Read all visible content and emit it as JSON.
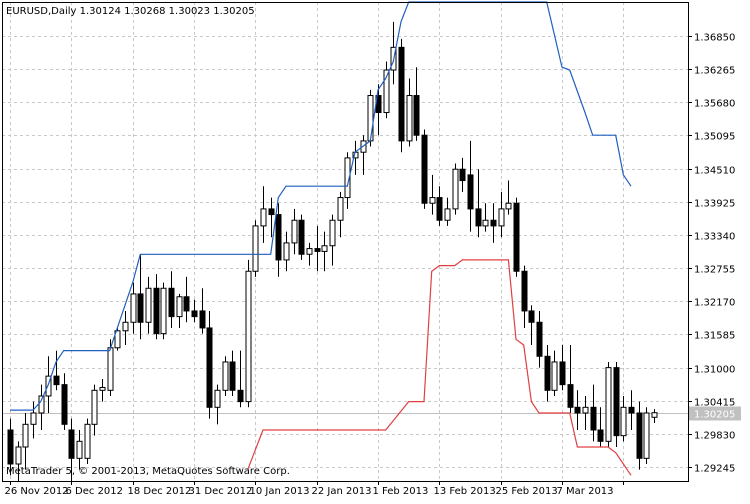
{
  "chart_data": {
    "type": "candlestick",
    "symbol_header": "EURUSD,Daily  1.30124 1.30268 1.30023 1.30205",
    "watermark": "MetaTrader 5, © 2001-2013, MetaQuotes Software Corp.",
    "current_price": 1.30205,
    "current_price_label": "1.30205",
    "ylim": [
      1.29,
      1.3745
    ],
    "ytick_values": [
      1.3685,
      1.36265,
      1.3568,
      1.35095,
      1.3451,
      1.33925,
      1.3334,
      1.32755,
      1.3217,
      1.31585,
      1.31,
      1.30415,
      1.2983,
      1.29245
    ],
    "ytick_labels": [
      "1.36850",
      "1.36265",
      "1.35680",
      "1.35095",
      "1.34510",
      "1.33925",
      "1.33340",
      "1.32755",
      "1.32170",
      "1.31585",
      "1.31000",
      "1.30415",
      "1.29830",
      "1.29245"
    ],
    "xtick_bars": [
      0,
      8,
      16,
      24,
      32,
      40,
      48,
      56,
      64,
      72,
      80
    ],
    "xtick_labels": [
      "26 Nov 2012",
      "6 Dec 2012",
      "18 Dec 2012",
      "31 Dec 2012",
      "10 Jan 2013",
      "22 Jan 2013",
      "1 Feb 2013",
      "13 Feb 2013",
      "25 Feb 2013",
      "7 Mar 2013",
      ""
    ],
    "candles": [
      {
        "o": 1.299,
        "h": 1.301,
        "l": 1.291,
        "c": 1.293
      },
      {
        "o": 1.293,
        "h": 1.297,
        "l": 1.29,
        "c": 1.296
      },
      {
        "o": 1.296,
        "h": 1.302,
        "l": 1.292,
        "c": 1.3
      },
      {
        "o": 1.3,
        "h": 1.304,
        "l": 1.2975,
        "c": 1.302
      },
      {
        "o": 1.302,
        "h": 1.307,
        "l": 1.299,
        "c": 1.305
      },
      {
        "o": 1.305,
        "h": 1.312,
        "l": 1.302,
        "c": 1.3085
      },
      {
        "o": 1.3085,
        "h": 1.313,
        "l": 1.306,
        "c": 1.307
      },
      {
        "o": 1.307,
        "h": 1.309,
        "l": 1.299,
        "c": 1.3
      },
      {
        "o": 1.299,
        "h": 1.301,
        "l": 1.29,
        "c": 1.294
      },
      {
        "o": 1.294,
        "h": 1.299,
        "l": 1.292,
        "c": 1.297
      },
      {
        "o": 1.294,
        "h": 1.301,
        "l": 1.293,
        "c": 1.3
      },
      {
        "o": 1.3,
        "h": 1.307,
        "l": 1.298,
        "c": 1.306
      },
      {
        "o": 1.306,
        "h": 1.308,
        "l": 1.304,
        "c": 1.3065
      },
      {
        "o": 1.306,
        "h": 1.315,
        "l": 1.305,
        "c": 1.3135
      },
      {
        "o": 1.3135,
        "h": 1.317,
        "l": 1.313,
        "c": 1.3165
      },
      {
        "o": 1.3165,
        "h": 1.32,
        "l": 1.314,
        "c": 1.318
      },
      {
        "o": 1.318,
        "h": 1.325,
        "l": 1.316,
        "c": 1.323
      },
      {
        "o": 1.323,
        "h": 1.33,
        "l": 1.315,
        "c": 1.318
      },
      {
        "o": 1.318,
        "h": 1.326,
        "l": 1.316,
        "c": 1.324
      },
      {
        "o": 1.324,
        "h": 1.3265,
        "l": 1.315,
        "c": 1.316
      },
      {
        "o": 1.316,
        "h": 1.325,
        "l": 1.315,
        "c": 1.324
      },
      {
        "o": 1.324,
        "h": 1.327,
        "l": 1.317,
        "c": 1.319
      },
      {
        "o": 1.319,
        "h": 1.323,
        "l": 1.317,
        "c": 1.3225
      },
      {
        "o": 1.3225,
        "h": 1.326,
        "l": 1.318,
        "c": 1.32
      },
      {
        "o": 1.32,
        "h": 1.322,
        "l": 1.318,
        "c": 1.319
      },
      {
        "o": 1.32,
        "h": 1.324,
        "l": 1.316,
        "c": 1.317
      },
      {
        "o": 1.317,
        "h": 1.32,
        "l": 1.301,
        "c": 1.303
      },
      {
        "o": 1.303,
        "h": 1.307,
        "l": 1.3,
        "c": 1.306
      },
      {
        "o": 1.306,
        "h": 1.312,
        "l": 1.305,
        "c": 1.311
      },
      {
        "o": 1.311,
        "h": 1.313,
        "l": 1.305,
        "c": 1.306
      },
      {
        "o": 1.306,
        "h": 1.313,
        "l": 1.303,
        "c": 1.304
      },
      {
        "o": 1.304,
        "h": 1.329,
        "l": 1.303,
        "c": 1.327
      },
      {
        "o": 1.327,
        "h": 1.336,
        "l": 1.326,
        "c": 1.335
      },
      {
        "o": 1.335,
        "h": 1.342,
        "l": 1.332,
        "c": 1.338
      },
      {
        "o": 1.338,
        "h": 1.34,
        "l": 1.333,
        "c": 1.337
      },
      {
        "o": 1.337,
        "h": 1.339,
        "l": 1.326,
        "c": 1.329
      },
      {
        "o": 1.329,
        "h": 1.334,
        "l": 1.327,
        "c": 1.332
      },
      {
        "o": 1.332,
        "h": 1.338,
        "l": 1.33,
        "c": 1.336
      },
      {
        "o": 1.336,
        "h": 1.337,
        "l": 1.329,
        "c": 1.33
      },
      {
        "o": 1.33,
        "h": 1.332,
        "l": 1.328,
        "c": 1.331
      },
      {
        "o": 1.331,
        "h": 1.335,
        "l": 1.327,
        "c": 1.3305
      },
      {
        "o": 1.3305,
        "h": 1.334,
        "l": 1.327,
        "c": 1.3315
      },
      {
        "o": 1.3315,
        "h": 1.337,
        "l": 1.328,
        "c": 1.336
      },
      {
        "o": 1.336,
        "h": 1.341,
        "l": 1.333,
        "c": 1.34
      },
      {
        "o": 1.34,
        "h": 1.348,
        "l": 1.338,
        "c": 1.347
      },
      {
        "o": 1.347,
        "h": 1.35,
        "l": 1.344,
        "c": 1.348
      },
      {
        "o": 1.348,
        "h": 1.351,
        "l": 1.344,
        "c": 1.35
      },
      {
        "o": 1.35,
        "h": 1.359,
        "l": 1.349,
        "c": 1.358
      },
      {
        "o": 1.358,
        "h": 1.36,
        "l": 1.351,
        "c": 1.355
      },
      {
        "o": 1.355,
        "h": 1.364,
        "l": 1.354,
        "c": 1.3625
      },
      {
        "o": 1.3625,
        "h": 1.371,
        "l": 1.36,
        "c": 1.3665
      },
      {
        "o": 1.3665,
        "h": 1.368,
        "l": 1.348,
        "c": 1.35
      },
      {
        "o": 1.35,
        "h": 1.361,
        "l": 1.349,
        "c": 1.358
      },
      {
        "o": 1.358,
        "h": 1.363,
        "l": 1.35,
        "c": 1.351
      },
      {
        "o": 1.351,
        "h": 1.352,
        "l": 1.338,
        "c": 1.339
      },
      {
        "o": 1.339,
        "h": 1.344,
        "l": 1.337,
        "c": 1.34
      },
      {
        "o": 1.34,
        "h": 1.342,
        "l": 1.335,
        "c": 1.336
      },
      {
        "o": 1.336,
        "h": 1.34,
        "l": 1.335,
        "c": 1.338
      },
      {
        "o": 1.338,
        "h": 1.346,
        "l": 1.337,
        "c": 1.345
      },
      {
        "o": 1.345,
        "h": 1.347,
        "l": 1.341,
        "c": 1.343
      },
      {
        "o": 1.344,
        "h": 1.35,
        "l": 1.334,
        "c": 1.338
      },
      {
        "o": 1.338,
        "h": 1.345,
        "l": 1.333,
        "c": 1.335
      },
      {
        "o": 1.335,
        "h": 1.339,
        "l": 1.334,
        "c": 1.336
      },
      {
        "o": 1.336,
        "h": 1.339,
        "l": 1.332,
        "c": 1.335
      },
      {
        "o": 1.335,
        "h": 1.341,
        "l": 1.333,
        "c": 1.338
      },
      {
        "o": 1.338,
        "h": 1.343,
        "l": 1.337,
        "c": 1.339
      },
      {
        "o": 1.339,
        "h": 1.34,
        "l": 1.326,
        "c": 1.327
      },
      {
        "o": 1.327,
        "h": 1.328,
        "l": 1.317,
        "c": 1.32
      },
      {
        "o": 1.32,
        "h": 1.321,
        "l": 1.314,
        "c": 1.318
      },
      {
        "o": 1.318,
        "h": 1.32,
        "l": 1.31,
        "c": 1.312
      },
      {
        "o": 1.312,
        "h": 1.314,
        "l": 1.304,
        "c": 1.306
      },
      {
        "o": 1.306,
        "h": 1.313,
        "l": 1.305,
        "c": 1.311
      },
      {
        "o": 1.311,
        "h": 1.314,
        "l": 1.306,
        "c": 1.307
      },
      {
        "o": 1.307,
        "h": 1.314,
        "l": 1.302,
        "c": 1.303
      },
      {
        "o": 1.303,
        "h": 1.306,
        "l": 1.299,
        "c": 1.302
      },
      {
        "o": 1.302,
        "h": 1.305,
        "l": 1.299,
        "c": 1.303
      },
      {
        "o": 1.303,
        "h": 1.307,
        "l": 1.297,
        "c": 1.299
      },
      {
        "o": 1.299,
        "h": 1.303,
        "l": 1.296,
        "c": 1.297
      },
      {
        "o": 1.297,
        "h": 1.311,
        "l": 1.296,
        "c": 1.31
      },
      {
        "o": 1.31,
        "h": 1.311,
        "l": 1.296,
        "c": 1.298
      },
      {
        "o": 1.298,
        "h": 1.305,
        "l": 1.297,
        "c": 1.303
      },
      {
        "o": 1.303,
        "h": 1.306,
        "l": 1.299,
        "c": 1.302
      },
      {
        "o": 1.302,
        "h": 1.304,
        "l": 1.292,
        "c": 1.294
      },
      {
        "o": 1.294,
        "h": 1.303,
        "l": 1.293,
        "c": 1.302
      },
      {
        "o": 1.30124,
        "h": 1.30268,
        "l": 1.30023,
        "c": 1.30205
      }
    ],
    "upper_line": [
      [
        0,
        1.3025
      ],
      [
        3,
        1.3025
      ],
      [
        4,
        1.304
      ],
      [
        5,
        1.307
      ],
      [
        6,
        1.311
      ],
      [
        7,
        1.313
      ],
      [
        13,
        1.313
      ],
      [
        14,
        1.317
      ],
      [
        16,
        1.325
      ],
      [
        17,
        1.33
      ],
      [
        34,
        1.33
      ],
      [
        35,
        1.34
      ],
      [
        36,
        1.342
      ],
      [
        44,
        1.342
      ],
      [
        45,
        1.348
      ],
      [
        47,
        1.35
      ],
      [
        48,
        1.359
      ],
      [
        49,
        1.361
      ],
      [
        50,
        1.364
      ],
      [
        51,
        1.371
      ],
      [
        52,
        1.3745
      ],
      [
        70,
        1.3745
      ],
      [
        72,
        1.363
      ],
      [
        73,
        1.3625
      ],
      [
        75,
        1.355
      ],
      [
        76,
        1.351
      ],
      [
        79,
        1.351
      ],
      [
        80,
        1.344
      ],
      [
        81,
        1.342
      ]
    ],
    "lower_line": [
      [
        31,
        1.292
      ],
      [
        33,
        1.299
      ],
      [
        49,
        1.299
      ],
      [
        52,
        1.304
      ],
      [
        54,
        1.304
      ],
      [
        55,
        1.327
      ],
      [
        56,
        1.328
      ],
      [
        58,
        1.328
      ],
      [
        59,
        1.329
      ],
      [
        64,
        1.329
      ],
      [
        65,
        1.329
      ],
      [
        66,
        1.315
      ],
      [
        67,
        1.314
      ],
      [
        68,
        1.304
      ],
      [
        69,
        1.302
      ],
      [
        73,
        1.302
      ],
      [
        74,
        1.296
      ],
      [
        78,
        1.296
      ],
      [
        79,
        1.295
      ],
      [
        80,
        1.293
      ],
      [
        81,
        1.291
      ]
    ],
    "colors": {
      "background": "#ffffff",
      "grid": "#c8c8c8",
      "axis": "#000000",
      "candle": "#000000",
      "upper_line": "#1f5fc0",
      "lower_line": "#e04040",
      "price_line": "#c0c0c0",
      "price_label_bg": "#c0c0c0",
      "price_label_text": "#ffffff"
    },
    "grid": true
  }
}
